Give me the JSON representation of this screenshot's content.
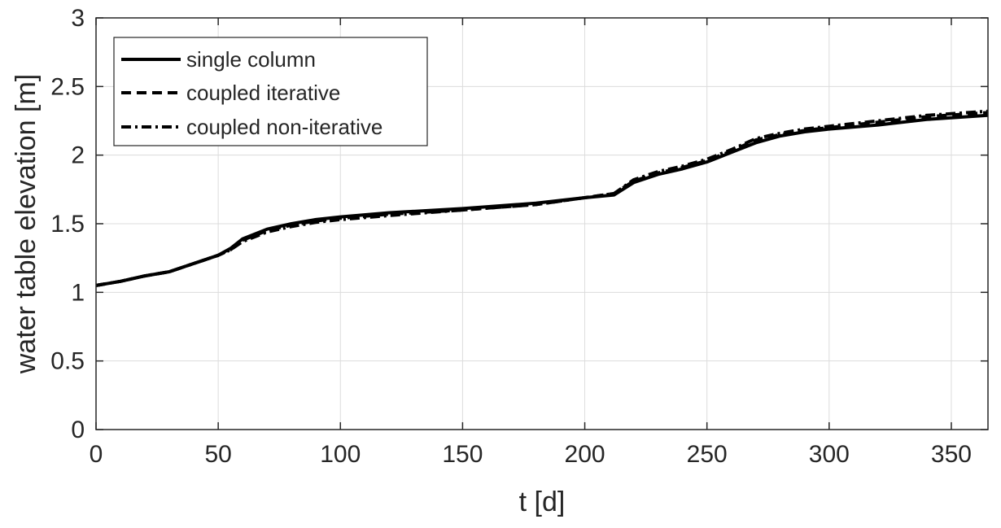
{
  "chart_data": {
    "type": "line",
    "xlabel": "t [d]",
    "ylabel": "water table elevation [m]",
    "xlim": [
      0,
      365
    ],
    "ylim": [
      0,
      3
    ],
    "xticks": [
      0,
      50,
      100,
      150,
      200,
      250,
      300,
      350
    ],
    "yticks": [
      0,
      0.5,
      1,
      1.5,
      2,
      2.5,
      3
    ],
    "xtick_labels": [
      "0",
      "50",
      "100",
      "150",
      "200",
      "250",
      "300",
      "350"
    ],
    "ytick_labels": [
      "0",
      "0.5",
      "1",
      "1.5",
      "2",
      "2.5",
      "3"
    ],
    "grid": true,
    "legend_position": "top-left",
    "series": [
      {
        "name": "single column",
        "style": "solid",
        "color": "#000000",
        "x": [
          0,
          10,
          20,
          30,
          40,
          50,
          55,
          60,
          70,
          80,
          90,
          100,
          120,
          150,
          180,
          200,
          212,
          220,
          230,
          240,
          250,
          260,
          270,
          280,
          290,
          300,
          320,
          340,
          365
        ],
        "y": [
          1.05,
          1.08,
          1.12,
          1.15,
          1.21,
          1.27,
          1.32,
          1.39,
          1.46,
          1.5,
          1.53,
          1.55,
          1.58,
          1.61,
          1.65,
          1.69,
          1.71,
          1.8,
          1.86,
          1.9,
          1.95,
          2.02,
          2.09,
          2.14,
          2.17,
          2.19,
          2.22,
          2.26,
          2.29
        ]
      },
      {
        "name": "coupled iterative",
        "style": "dashed",
        "color": "#000000",
        "x": [
          0,
          10,
          20,
          30,
          40,
          50,
          55,
          60,
          70,
          80,
          90,
          100,
          120,
          150,
          180,
          200,
          212,
          220,
          230,
          240,
          250,
          260,
          270,
          280,
          290,
          300,
          320,
          340,
          365
        ],
        "y": [
          1.05,
          1.08,
          1.12,
          1.15,
          1.21,
          1.27,
          1.31,
          1.38,
          1.45,
          1.49,
          1.52,
          1.54,
          1.57,
          1.6,
          1.64,
          1.69,
          1.72,
          1.81,
          1.87,
          1.91,
          1.96,
          2.03,
          2.11,
          2.15,
          2.18,
          2.2,
          2.24,
          2.28,
          2.31
        ]
      },
      {
        "name": "coupled non-iterative",
        "style": "dash-dot",
        "color": "#000000",
        "x": [
          0,
          10,
          20,
          30,
          40,
          50,
          55,
          60,
          70,
          80,
          90,
          100,
          120,
          150,
          180,
          200,
          212,
          220,
          230,
          240,
          250,
          260,
          270,
          280,
          290,
          300,
          320,
          340,
          365
        ],
        "y": [
          1.05,
          1.08,
          1.12,
          1.15,
          1.21,
          1.27,
          1.31,
          1.37,
          1.44,
          1.48,
          1.51,
          1.53,
          1.56,
          1.6,
          1.64,
          1.69,
          1.72,
          1.82,
          1.88,
          1.92,
          1.97,
          2.04,
          2.12,
          2.16,
          2.19,
          2.21,
          2.25,
          2.29,
          2.32
        ]
      }
    ]
  }
}
